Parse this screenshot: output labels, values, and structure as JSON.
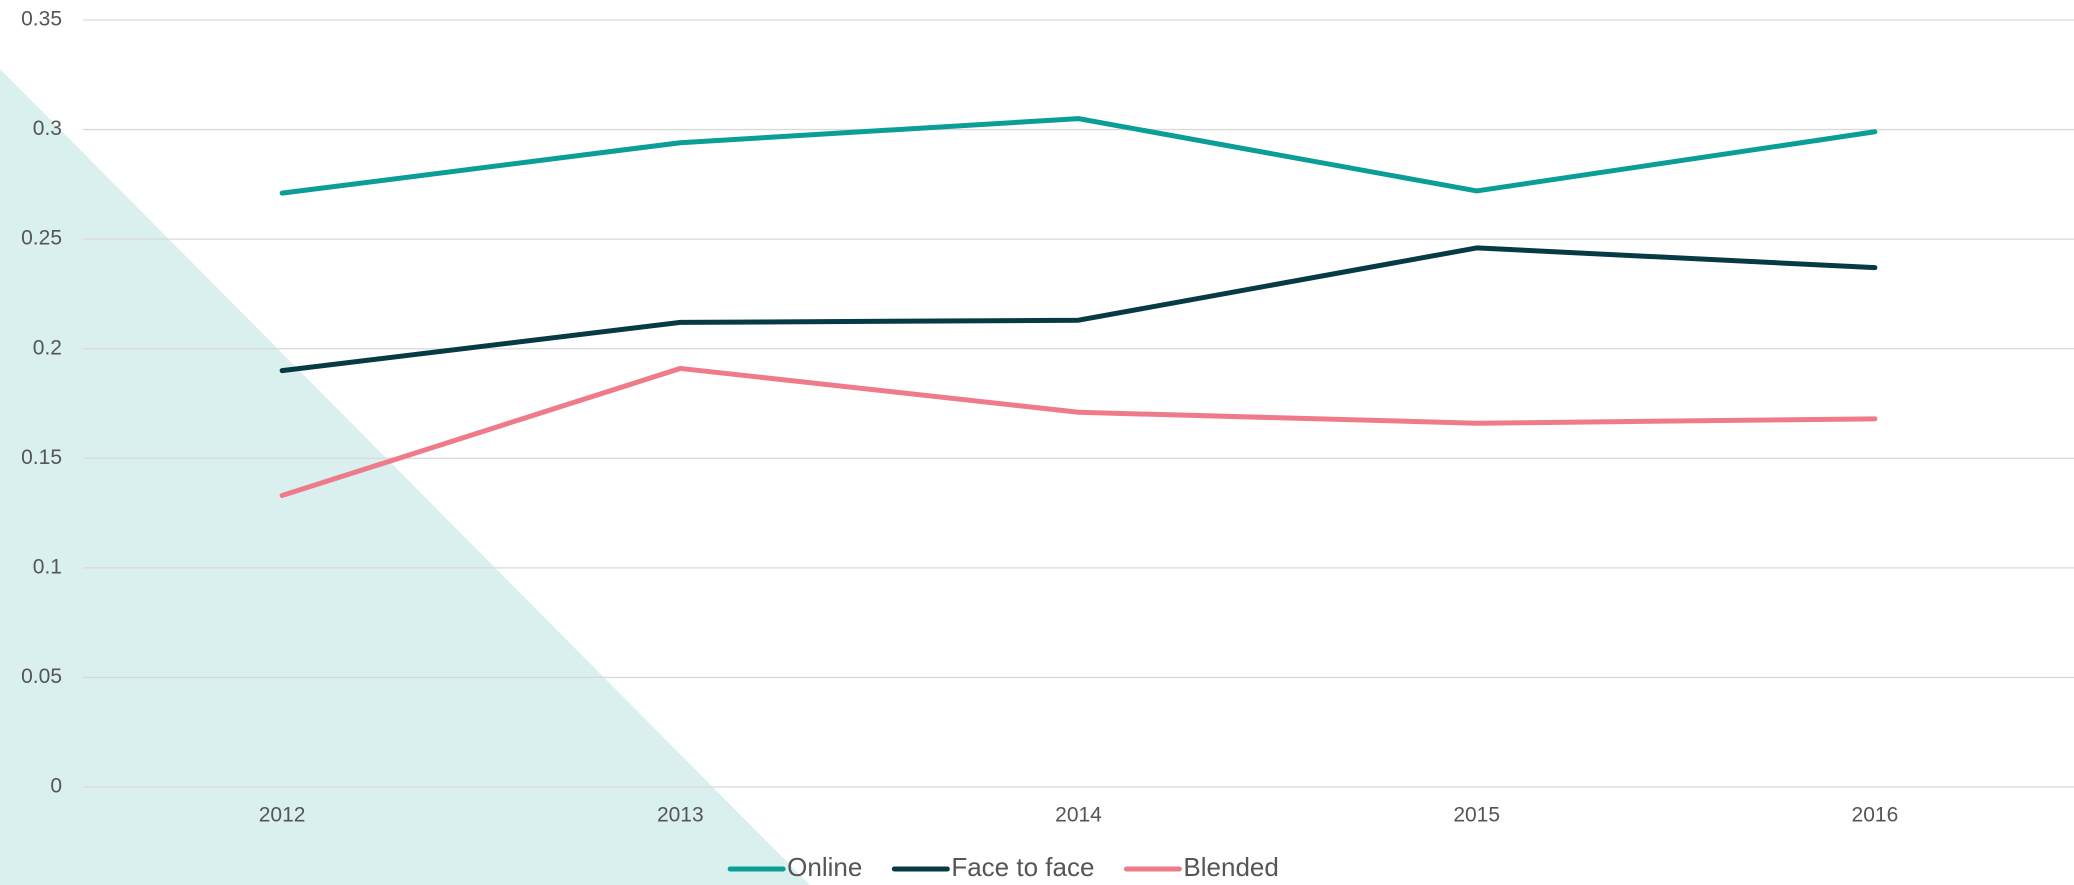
{
  "chart_data": {
    "type": "line",
    "categories": [
      "2012",
      "2013",
      "2014",
      "2015",
      "2016"
    ],
    "series": [
      {
        "name": "Online",
        "color": "#0b9e96",
        "values": [
          0.271,
          0.294,
          0.305,
          0.272,
          0.299
        ]
      },
      {
        "name": "Face to face",
        "color": "#063a44",
        "values": [
          0.19,
          0.212,
          0.213,
          0.246,
          0.237
        ]
      },
      {
        "name": "Blended",
        "color": "#ef7a8a",
        "values": [
          0.133,
          0.191,
          0.171,
          0.166,
          0.168
        ]
      }
    ],
    "ylim": [
      0,
      0.35
    ],
    "yticks": [
      0,
      0.05,
      0.1,
      0.15,
      0.2,
      0.25,
      0.3,
      0.35
    ],
    "grid": true,
    "legend": "bottom"
  }
}
